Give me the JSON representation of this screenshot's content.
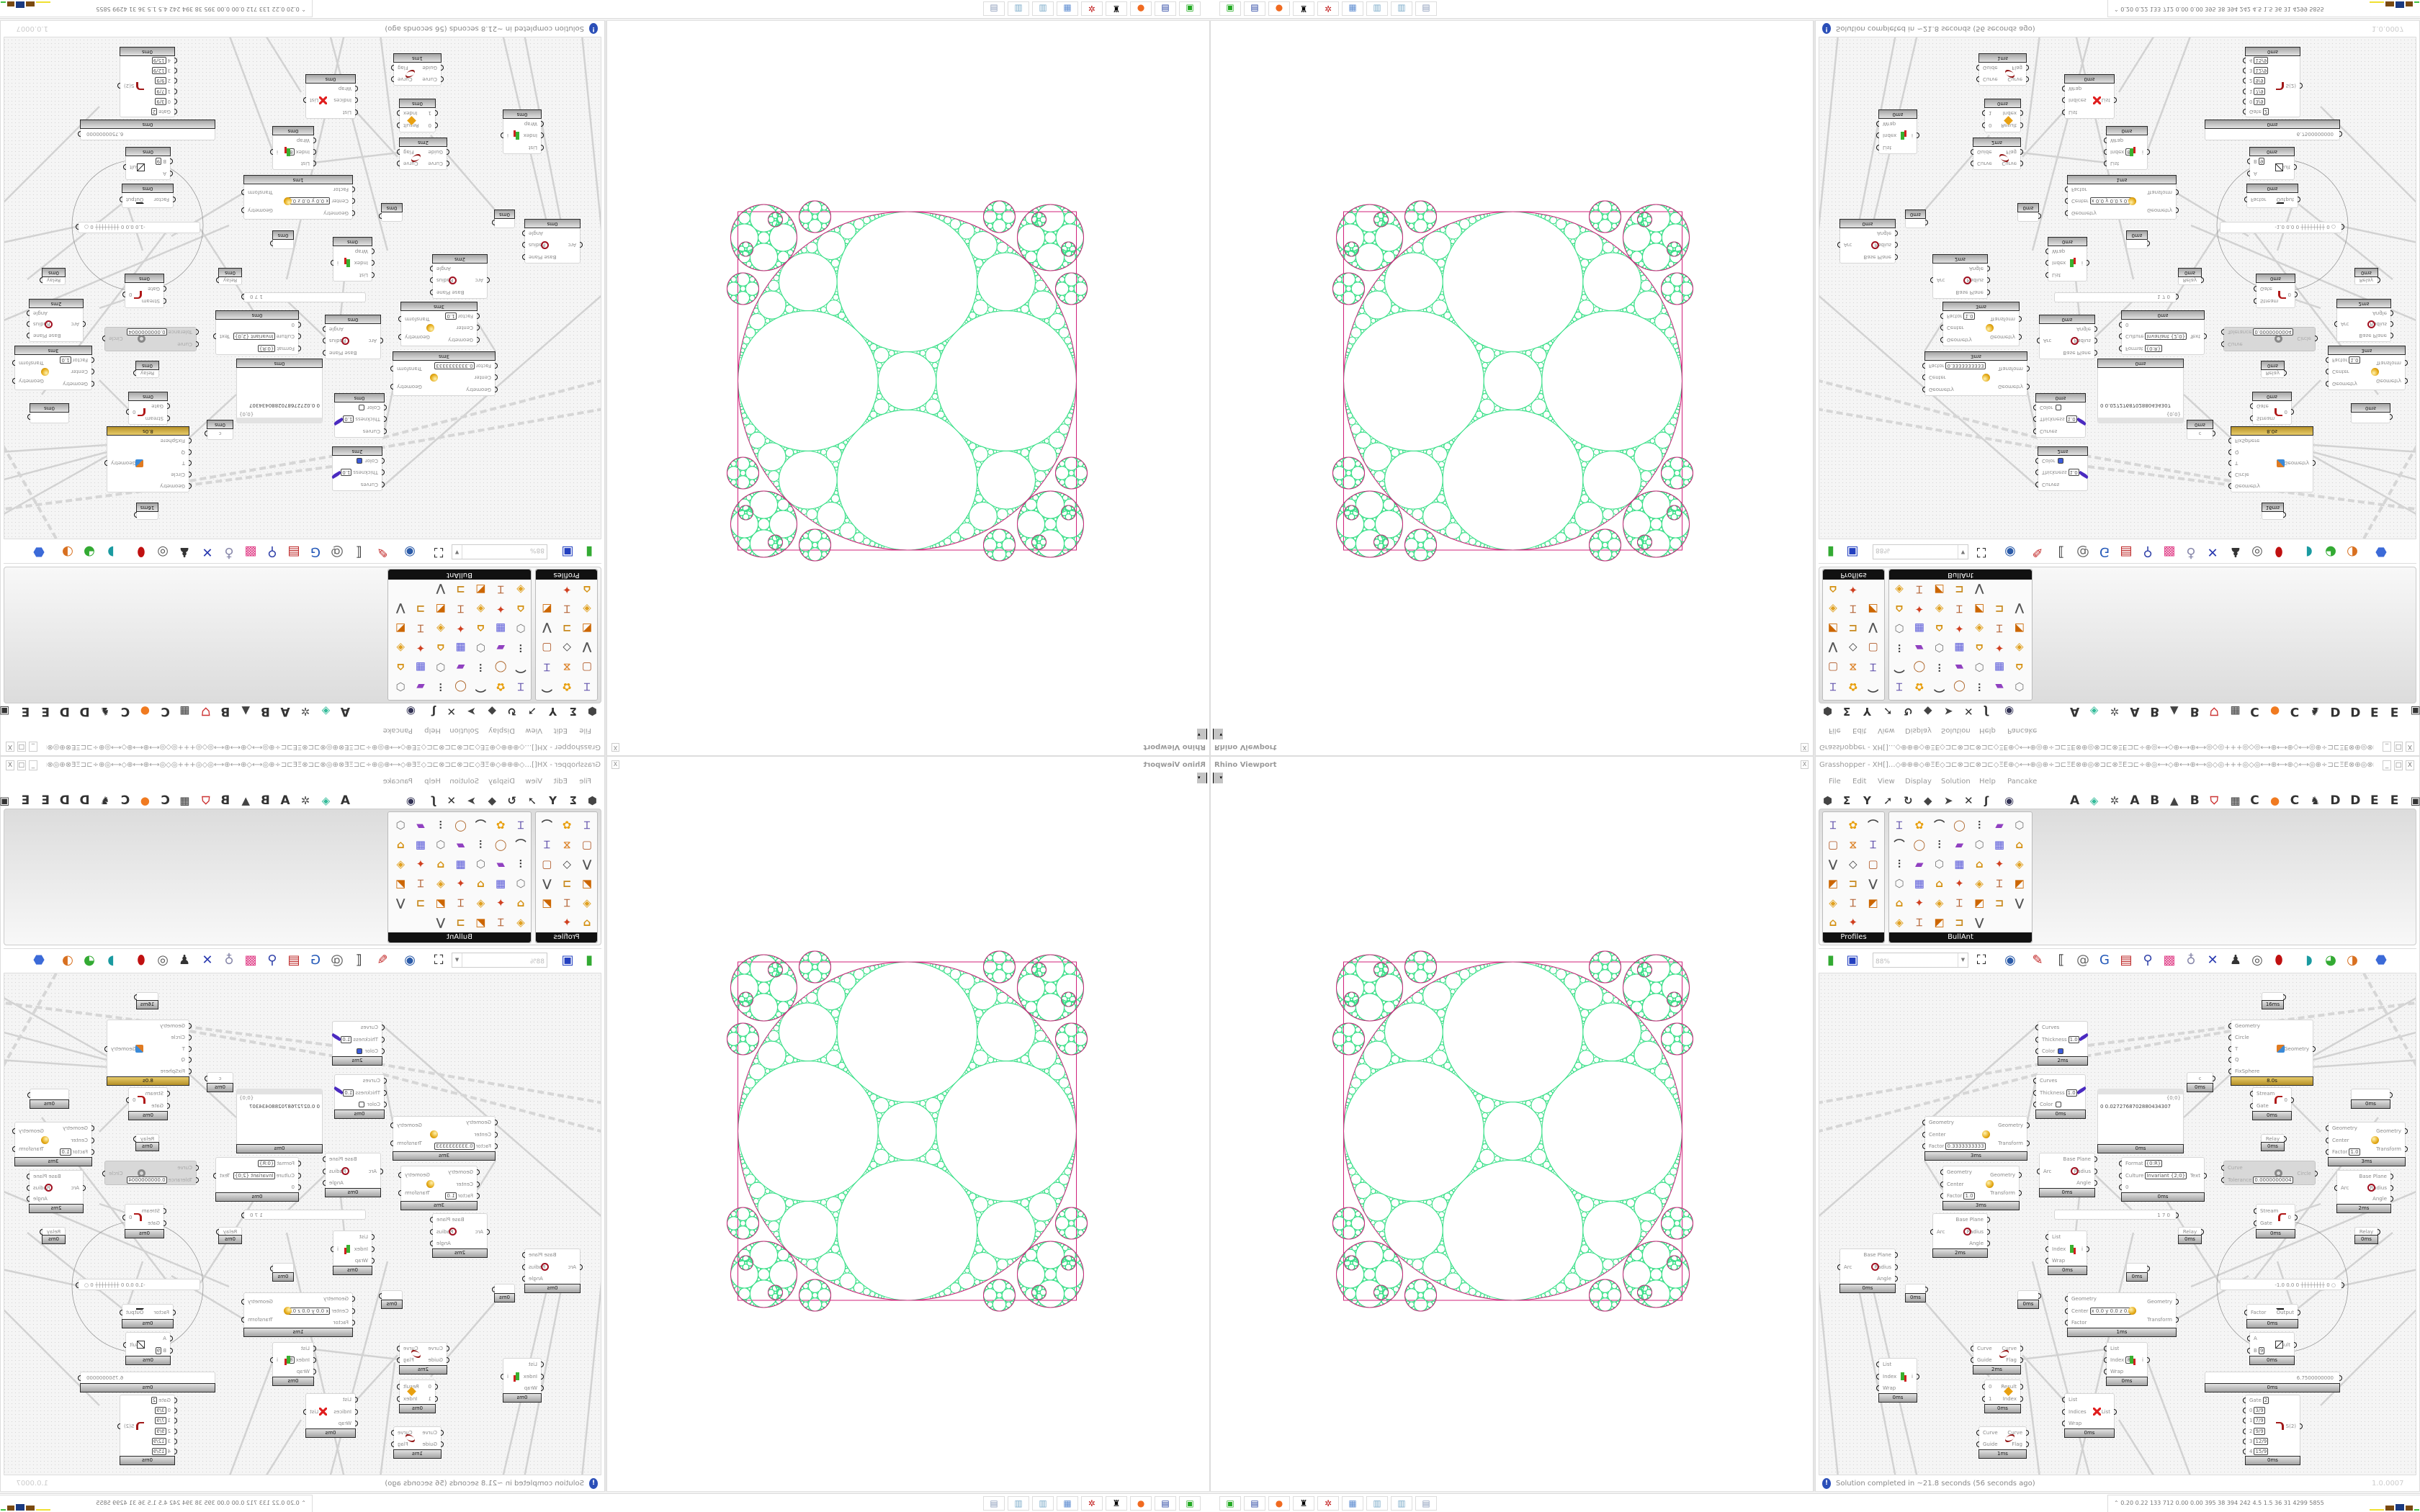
{
  "viewport": {
    "title": "Rhino Viewport",
    "close": "X",
    "drop": "▾"
  },
  "gh": {
    "title": "Grasshopper - XH[]...◇⊕⊕⊕◇⊕ΞE◇⊐⊏⊗⊐⊏⊗⊐⊏◇ΞE⊕◇⟷⊕◎⊕÷⊐⊏ΞE⊗⊕◎⊗⊐⊏⊗ΞE⊐⊏÷⊕◎⟷◇⊕⟷⊕⟷◎◇◎+++◎◇◎⟷⊕⟷⊕◇⟷◎⊕÷⊐⊏ΞE⊗⊕◎⊗⊏⊐⊗...",
    "window_buttons": [
      "_",
      "□",
      "X"
    ],
    "menu": [
      "File",
      "Edit",
      "View",
      "Display",
      "Solution",
      "Help",
      "Pancake"
    ],
    "toolbar_left_icons": [
      "hexagon-icon",
      "sigma-icon",
      "y-branch-icon",
      "arrow-icon",
      "loop-icon",
      "diamond-icon",
      "arrowhead-icon",
      "cross-icon",
      "hook-icon",
      "eye-icon"
    ],
    "tab_items": [
      "A",
      "leaf-icon",
      "gear-icon",
      "A",
      "B",
      "terrain-icon",
      "B",
      "shield-icon",
      "grid-icon",
      "C",
      "orange-dot-icon",
      "C",
      "bird-icon",
      "D",
      "D",
      "E",
      "E",
      "layout-icon"
    ],
    "palette": {
      "profiles_label": "Profiles",
      "bullant_label": "BullAnt",
      "profiles_icons": 17,
      "bullant_icons": 40
    },
    "toolbar2_icons": [
      "open-file-icon",
      "save-icon",
      "zoom-extents-icon",
      "eye-icon",
      "brush-icon",
      "bracket-icon",
      "at-icon",
      "gha-icon",
      "window-icon",
      "search-icon",
      "box-icon",
      "bulb-icon",
      "twist-icon",
      "bulb-dark-icon",
      "ring-icon",
      "red-cylinder-icon",
      "teal-shape-icon",
      "green-shape-icon",
      "sphere-icon",
      "blue-shape-icon"
    ],
    "zoom": "88%",
    "status": "Solution completed in ~21.8 seconds (56 seconds ago)",
    "version": "1.0.0007"
  },
  "canvas": {
    "nodes": [
      {
        "icon": "preview-icon",
        "in": [
          "Curves",
          "Thickness",
          "Color"
        ],
        "out": [],
        "vals": [
          null,
          "1.0",
          null
        ],
        "swatch": "#3b5bdb",
        "t": "2ms"
      },
      {
        "icon": "preview-icon",
        "in": [
          "Curves",
          "Thickness",
          "Color"
        ],
        "out": [],
        "vals": [
          null,
          "1.0",
          null
        ],
        "swatch": "#ffffff",
        "t": "0ms"
      },
      {
        "icon": "scale-icon",
        "in": [
          "Geometry",
          "Center",
          "Factor"
        ],
        "out": [
          "Geometry",
          "Transform"
        ],
        "vals": [
          null,
          null,
          "0.3333333333"
        ],
        "t": "3ms"
      },
      {
        "icon": "scale-icon",
        "in": [
          "Geometry",
          "Center",
          "Factor"
        ],
        "out": [
          "Geometry",
          "Transform"
        ],
        "vals": [
          null,
          null,
          "1.0"
        ],
        "t": "3ms"
      },
      {
        "icon": "arc-icon",
        "in": [
          "Arc"
        ],
        "out": [
          "Base Plane",
          "Radius",
          "Angle"
        ],
        "t": "0ms"
      },
      {
        "icon": "panel-icon",
        "kind": "panel",
        "header": "{0;0}",
        "content": "0 0.0272768702880434307",
        "t": "0ms"
      },
      {
        "icon": "apollonian-icon",
        "in": [
          "Geometry",
          "Circle",
          "T",
          "Q",
          "FixSphere"
        ],
        "out": [
          "Geometry"
        ],
        "t": "8.0s",
        "gold": true
      },
      {
        "icon": "param-icon",
        "kind": "param",
        "label": "c",
        "t": "0ms"
      },
      {
        "icon": "param-icon",
        "kind": "param",
        "label": "",
        "t": "16ms"
      },
      {
        "icon": "stream-gate-icon",
        "in": [
          "Stream",
          "Gate"
        ],
        "out": [
          "0"
        ],
        "t": "0ms"
      },
      {
        "icon": "relay-icon",
        "kind": "param",
        "label": "Relay",
        "t": "0ms"
      },
      {
        "icon": "circle-fit-icon",
        "in": [
          "Curve",
          "Tolerance"
        ],
        "out": [
          "Circle"
        ],
        "vals": [
          null,
          "0.0000000004"
        ],
        "disabled": true
      },
      {
        "icon": "format-icon",
        "in": [
          "Format",
          "Culture",
          "0"
        ],
        "out": [
          "Text"
        ],
        "vals": [
          "{0:R}",
          "Invariant {2;0}",
          null
        ],
        "t": "0ms"
      },
      {
        "icon": "scale-icon",
        "in": [
          "Geometry",
          "Center",
          "Factor"
        ],
        "out": [
          "Geometry",
          "Transform"
        ],
        "vals": [
          null,
          null,
          "1.0"
        ],
        "t": "3ms"
      },
      {
        "icon": "arc-icon",
        "in": [
          "Arc"
        ],
        "out": [
          "Base Plane",
          "Radius",
          "Angle"
        ],
        "t": "2ms"
      },
      {
        "icon": "slider-icon",
        "kind": "slider",
        "label": "1 7 0"
      },
      {
        "icon": "stream-gate-icon",
        "in": [
          "Stream",
          "Gate"
        ],
        "out": [
          "0"
        ],
        "t": "0ms"
      },
      {
        "icon": "arc-icon",
        "in": [
          "Arc"
        ],
        "out": [
          "Base Plane",
          "Radius",
          "Angle"
        ],
        "t": "2ms"
      },
      {
        "icon": "arc-icon",
        "in": [
          "Arc"
        ],
        "out": [
          "Base Plane",
          "Radius",
          "Angle"
        ],
        "t": "0ms"
      },
      {
        "icon": "param-icon",
        "kind": "param",
        "label": "",
        "t": "0ms"
      },
      {
        "icon": "list-item-icon",
        "in": [
          "List",
          "Index",
          "Wrap"
        ],
        "out": [
          "i"
        ],
        "t": "0ms"
      },
      {
        "icon": "param-icon",
        "kind": "param",
        "label": "",
        "t": "0ms"
      },
      {
        "icon": "param-icon",
        "kind": "param",
        "label": "",
        "t": "0ms"
      },
      {
        "icon": "scale-icon",
        "in": [
          "Geometry",
          "Center",
          "Factor"
        ],
        "out": [
          "Geometry",
          "Transform"
        ],
        "vals": [
          null,
          "x 0.0 y 0.0 z 0.0",
          null
        ],
        "t": "1ms"
      },
      {
        "icon": "relay-icon",
        "kind": "param",
        "label": "Relay",
        "t": "0ms"
      },
      {
        "icon": "relay-icon",
        "kind": "param",
        "label": "Relay",
        "t": "0ms"
      },
      {
        "icon": "param-icon",
        "kind": "param",
        "label": "",
        "t": "0ms"
      },
      {
        "icon": "slider-icon",
        "kind": "slider",
        "label": "-1.0  0.0  0   ┼┼┼┼┼┼┼┼ 0 ○"
      },
      {
        "icon": "pi-icon",
        "in": [
          "Factor"
        ],
        "out": [
          "Output"
        ],
        "t": "0ms"
      },
      {
        "icon": "division-icon",
        "in": [
          "A",
          "B"
        ],
        "out": [
          "Result"
        ],
        "vals": [
          null,
          "9"
        ],
        "t": "0ms"
      },
      {
        "icon": "slider-icon",
        "kind": "slider",
        "label": "6.7500000000",
        "t": "0ms"
      },
      {
        "icon": "stream-filter-icon",
        "in": [
          "Gate",
          "0",
          "1",
          "2",
          "3",
          "4"
        ],
        "out": [
          "S(2)"
        ],
        "vals": [
          "2",
          "3/9",
          "7/9",
          "9/9",
          "12/9",
          "15/9"
        ],
        "t": "0ms"
      },
      {
        "icon": "flip-curve-icon",
        "in": [
          "Curve",
          "Guide"
        ],
        "out": [
          "Curve",
          "Flag"
        ],
        "t": "2ms"
      },
      {
        "icon": "list-item-icon",
        "in": [
          "List",
          "Index",
          "Wrap"
        ],
        "out": [
          "i"
        ],
        "t": "0ms"
      },
      {
        "icon": "dispatch-icon",
        "in": [
          "0",
          "1"
        ],
        "out": [
          "Result",
          "Index"
        ],
        "t": "0ms"
      },
      {
        "icon": "flip-curve-icon",
        "in": [
          "Curve",
          "Guide"
        ],
        "out": [
          "Curve",
          "Flag"
        ],
        "t": "1ms"
      },
      {
        "icon": "list-item-icon",
        "in": [
          "List",
          "Index",
          "Wrap"
        ],
        "out": [
          "i"
        ],
        "vals": [
          null,
          "8",
          null
        ],
        "t": "0ms"
      },
      {
        "icon": "cull-index-icon",
        "in": [
          "List",
          "Indices",
          "Wrap"
        ],
        "out": [
          "List"
        ],
        "t": "0ms"
      }
    ]
  },
  "taskbar": {
    "icons": [
      "drive-icon",
      "save-64-icon",
      "firefox-icon",
      "rhino-icon",
      "gear-red-icon",
      "calculator-icon",
      "notepad-icon",
      "notepad-icon",
      "printer-icon"
    ],
    "stats": "0.20 0.22  133  712  0.00 0.00  395   38   394  242   4.5   1.5   36   31  4299 5855"
  },
  "colors": {
    "gasket": "#3de08a",
    "gasket_outline": "#d0207a",
    "accent_gold": "#c9a437",
    "status_icon": "#2b4fb8"
  }
}
